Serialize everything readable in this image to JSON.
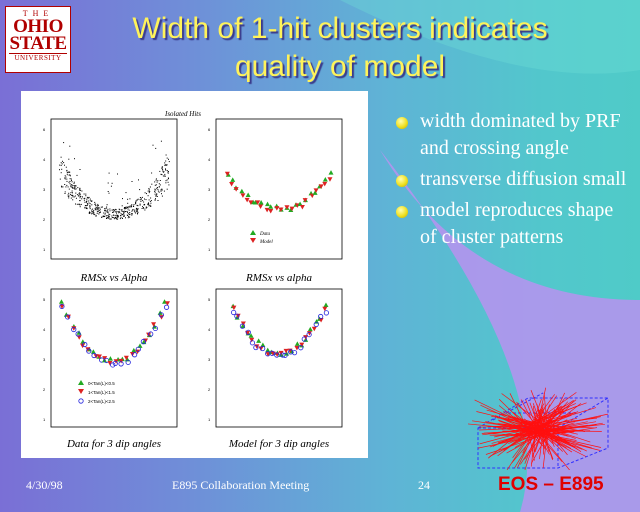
{
  "logo": {
    "the": "THE",
    "ohio": "OHIO",
    "state": "STATE",
    "university": "UNIVERSITY"
  },
  "title": {
    "line1": "Width of 1-hit clusters indicates",
    "line2": "quality of model"
  },
  "figure": {
    "header": "Isolated Hits",
    "panels": [
      {
        "caption": "RMSx vs Alpha"
      },
      {
        "caption": "RMSx vs alpha",
        "legend": [
          "Data",
          "Model"
        ]
      },
      {
        "caption": "Data for 3 dip angles",
        "legend": [
          "0<Tan(L)<0.5",
          "1<Tan(L)<1.5",
          "2<Tan(L)<2.5"
        ]
      },
      {
        "caption": "Model for 3 dip angles"
      }
    ]
  },
  "bullets": [
    "width dominated by PRF and crossing angle",
    "transverse diffusion small",
    "model reproduces shape of cluster patterns"
  ],
  "footer": {
    "date": "4/30/98",
    "meeting": "E895 Collaboration Meeting",
    "page": "24",
    "brand": "EOS – E895"
  },
  "colors": {
    "title": "#fff35a",
    "brand": "#e00000",
    "logo": "#b00000"
  }
}
